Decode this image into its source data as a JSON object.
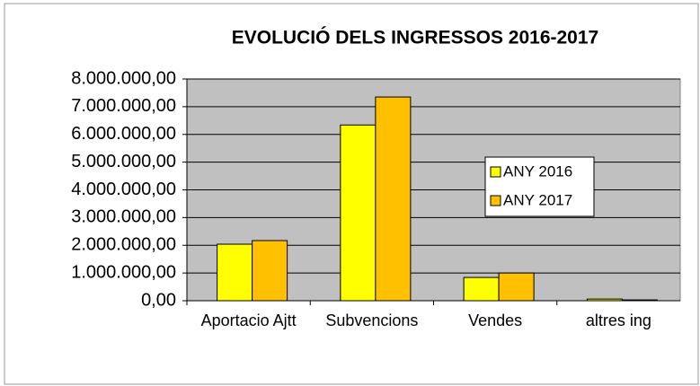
{
  "chart_data": {
    "type": "bar",
    "title": "EVOLUCIÓ  DELS INGRESSOS 2016-2017",
    "categories": [
      "Aportacio Ajtt",
      "Subvencions",
      "Vendes",
      "altres ing"
    ],
    "series": [
      {
        "name": "ANY 2016",
        "color": "#ffff00",
        "values": [
          2040000,
          6340000,
          840000,
          60000
        ]
      },
      {
        "name": "ANY 2017",
        "color": "#ffc000",
        "values": [
          2170000,
          7350000,
          1000000,
          30000
        ]
      }
    ],
    "ylim": [
      0,
      8000000
    ],
    "yticks": [
      {
        "value": 0,
        "label": "0,00"
      },
      {
        "value": 1000000,
        "label": "1.000.000,00"
      },
      {
        "value": 2000000,
        "label": "2.000.000,00"
      },
      {
        "value": 3000000,
        "label": "3.000.000,00"
      },
      {
        "value": 4000000,
        "label": "4.000.000,00"
      },
      {
        "value": 5000000,
        "label": "5.000.000,00"
      },
      {
        "value": 6000000,
        "label": "6.000.000,00"
      },
      {
        "value": 7000000,
        "label": "7.000.000,00"
      },
      {
        "value": 8000000,
        "label": "8.000.000,00"
      }
    ],
    "grid": true,
    "legend": "right"
  }
}
